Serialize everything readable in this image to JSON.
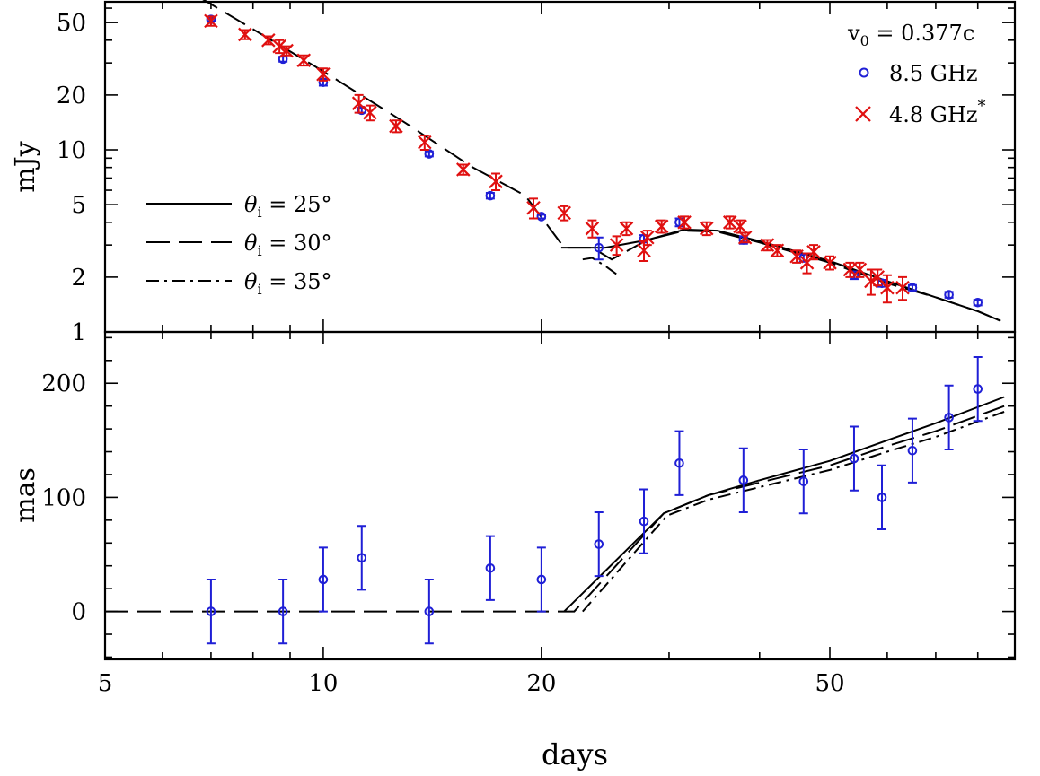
{
  "chart_data": [
    {
      "type": "scatter",
      "panel": "top",
      "ylabel": "mJy",
      "xlabel": "days",
      "xscale": "log",
      "yscale": "log",
      "xlim": [
        5,
        90
      ],
      "ylim": [
        1,
        65
      ],
      "x_ticks": [
        "5",
        "10",
        "20",
        "50"
      ],
      "y_ticks": [
        "1",
        "2",
        "5",
        "10",
        "20",
        "50"
      ],
      "annotation": {
        "v": "v",
        "sub": "0",
        "rest": " = 0.377c"
      },
      "legend_position": "top-right",
      "series": [
        {
          "name": "8.5 GHz",
          "color": "#1f1fd6",
          "marker": "open-circle",
          "points": [
            {
              "x": 7.0,
              "y": 52,
              "err": 1
            },
            {
              "x": 8.8,
              "y": 31.5,
              "err": 1
            },
            {
              "x": 10.0,
              "y": 23.5,
              "err": 1
            },
            {
              "x": 11.3,
              "y": 16.5,
              "err": 0.5
            },
            {
              "x": 14.0,
              "y": 9.5,
              "err": 0.3
            },
            {
              "x": 17.0,
              "y": 5.6,
              "err": 0.2
            },
            {
              "x": 20.0,
              "y": 4.3,
              "err": 0.1
            },
            {
              "x": 24.0,
              "y": 2.9,
              "err": 0.4
            },
            {
              "x": 27.7,
              "y": 3.25,
              "err": 0.15
            },
            {
              "x": 31.0,
              "y": 4.0,
              "err": 0.2
            },
            {
              "x": 38.0,
              "y": 3.2,
              "err": 0.15
            },
            {
              "x": 46.0,
              "y": 2.55,
              "err": 0.12
            },
            {
              "x": 54.0,
              "y": 2.05,
              "err": 0.1
            },
            {
              "x": 59.0,
              "y": 1.85,
              "err": 0.08
            },
            {
              "x": 65.0,
              "y": 1.75,
              "err": 0.06
            },
            {
              "x": 73.0,
              "y": 1.6,
              "err": 0.06
            },
            {
              "x": 80.0,
              "y": 1.45,
              "err": 0.05
            }
          ]
        },
        {
          "name": "4.8 GHz",
          "name_sup": "*",
          "color": "#e01010",
          "marker": "x",
          "points": [
            {
              "x": 7.0,
              "y": 51,
              "err": 3
            },
            {
              "x": 7.8,
              "y": 43,
              "err": 2.5
            },
            {
              "x": 8.4,
              "y": 40,
              "err": 2
            },
            {
              "x": 8.7,
              "y": 37,
              "err": 3
            },
            {
              "x": 8.9,
              "y": 35,
              "err": 2
            },
            {
              "x": 9.4,
              "y": 31,
              "err": 2
            },
            {
              "x": 10.0,
              "y": 26,
              "err": 2
            },
            {
              "x": 11.2,
              "y": 18,
              "err": 2
            },
            {
              "x": 11.6,
              "y": 16,
              "err": 1.5
            },
            {
              "x": 12.6,
              "y": 13.5,
              "err": 1
            },
            {
              "x": 13.8,
              "y": 11,
              "err": 1
            },
            {
              "x": 15.6,
              "y": 7.8,
              "err": 0.5
            },
            {
              "x": 17.3,
              "y": 6.7,
              "err": 0.7
            },
            {
              "x": 19.5,
              "y": 4.8,
              "err": 0.6
            },
            {
              "x": 21.5,
              "y": 4.5,
              "err": 0.4
            },
            {
              "x": 23.5,
              "y": 3.7,
              "err": 0.4
            },
            {
              "x": 25.4,
              "y": 3.0,
              "err": 0.35
            },
            {
              "x": 26.2,
              "y": 3.7,
              "err": 0.3
            },
            {
              "x": 27.7,
              "y": 2.8,
              "err": 0.35
            },
            {
              "x": 28.0,
              "y": 3.3,
              "err": 0.3
            },
            {
              "x": 29.3,
              "y": 3.8,
              "err": 0.3
            },
            {
              "x": 31.5,
              "y": 4.0,
              "err": 0.3
            },
            {
              "x": 33.8,
              "y": 3.7,
              "err": 0.3
            },
            {
              "x": 36.4,
              "y": 4.0,
              "err": 0.3
            },
            {
              "x": 37.6,
              "y": 3.8,
              "err": 0.3
            },
            {
              "x": 38.2,
              "y": 3.3,
              "err": 0.2
            },
            {
              "x": 41.0,
              "y": 3.0,
              "err": 0.2
            },
            {
              "x": 42.3,
              "y": 2.8,
              "err": 0.2
            },
            {
              "x": 45.0,
              "y": 2.6,
              "err": 0.2
            },
            {
              "x": 46.5,
              "y": 2.4,
              "err": 0.3
            },
            {
              "x": 47.5,
              "y": 2.75,
              "err": 0.25
            },
            {
              "x": 50.0,
              "y": 2.4,
              "err": 0.2
            },
            {
              "x": 53.3,
              "y": 2.2,
              "err": 0.2
            },
            {
              "x": 55.0,
              "y": 2.2,
              "err": 0.2
            },
            {
              "x": 57.0,
              "y": 1.9,
              "err": 0.3
            },
            {
              "x": 58.2,
              "y": 2.0,
              "err": 0.2
            },
            {
              "x": 60.0,
              "y": 1.75,
              "err": 0.3
            },
            {
              "x": 63.0,
              "y": 1.75,
              "err": 0.25
            }
          ]
        }
      ],
      "models": [
        {
          "name": "θi = 25°",
          "legend": {
            "theta": "θ",
            "sub": "i",
            "rest": " = 25°"
          },
          "style": "solid",
          "points": [
            [
              21.3,
              2.9
            ],
            [
              24.5,
              2.9
            ],
            [
              28,
              3.2
            ],
            [
              31.5,
              3.65
            ],
            [
              35,
              3.6
            ],
            [
              40,
              3.15
            ],
            [
              50,
              2.45
            ],
            [
              60,
              1.9
            ],
            [
              70,
              1.55
            ],
            [
              80,
              1.3
            ],
            [
              86,
              1.15
            ]
          ]
        },
        {
          "name": "θi = 30°",
          "legend": {
            "theta": "θ",
            "sub": "i",
            "rest": " = 30°"
          },
          "style": "dashed",
          "points": [
            [
              6.7,
              70
            ],
            [
              8,
              46
            ],
            [
              10,
              27
            ],
            [
              13,
              14
            ],
            [
              16,
              8.1
            ],
            [
              19,
              5.6
            ],
            [
              21.5,
              2.9
            ],
            [
              23.5,
              2.9
            ],
            [
              25,
              2.5
            ],
            [
              28,
              3.2
            ],
            [
              31.5,
              3.6
            ],
            [
              35,
              3.55
            ],
            [
              40,
              3.1
            ],
            [
              50,
              2.4
            ],
            [
              60,
              1.85
            ],
            [
              70,
              1.55
            ],
            [
              80,
              1.3
            ],
            [
              86,
              1.15
            ]
          ]
        },
        {
          "name": "θi = 35°",
          "legend": {
            "theta": "θ",
            "sub": "i",
            "rest": " = 35°"
          },
          "style": "dashdot",
          "points": [
            [
              22.8,
              2.5
            ],
            [
              23.5,
              2.55
            ],
            [
              24.5,
              2.3
            ],
            [
              25.5,
              2.05
            ]
          ]
        }
      ]
    },
    {
      "type": "scatter",
      "panel": "bottom",
      "ylabel": "mas",
      "xlabel": "days",
      "xscale": "log",
      "xlim": [
        5,
        90
      ],
      "ylim": [
        -42,
        245
      ],
      "x_ticks": [
        "5",
        "10",
        "20",
        "50"
      ],
      "y_ticks": [
        "0",
        "100",
        "200"
      ],
      "series": [
        {
          "name": "",
          "color": "#1f1fd6",
          "marker": "open-circle",
          "points": [
            {
              "x": 7.0,
              "y": 0,
              "err": 28
            },
            {
              "x": 8.8,
              "y": 0,
              "err": 28
            },
            {
              "x": 10.0,
              "y": 28,
              "err": 28
            },
            {
              "x": 11.3,
              "y": 47,
              "err": 28
            },
            {
              "x": 14.0,
              "y": 0,
              "err": 28
            },
            {
              "x": 17.0,
              "y": 38,
              "err": 28
            },
            {
              "x": 20.0,
              "y": 28,
              "err": 28
            },
            {
              "x": 24.0,
              "y": 59,
              "err": 28
            },
            {
              "x": 27.7,
              "y": 79,
              "err": 28
            },
            {
              "x": 31.0,
              "y": 130,
              "err": 28
            },
            {
              "x": 38.0,
              "y": 115,
              "err": 28
            },
            {
              "x": 46.0,
              "y": 114,
              "err": 28
            },
            {
              "x": 54.0,
              "y": 134,
              "err": 28
            },
            {
              "x": 59.0,
              "y": 100,
              "err": 28
            },
            {
              "x": 65.0,
              "y": 141,
              "err": 28
            },
            {
              "x": 73.0,
              "y": 170,
              "err": 28
            },
            {
              "x": 80.0,
              "y": 195,
              "err": 28
            }
          ]
        }
      ],
      "models": [
        {
          "name": "θi = 25°",
          "style": "solid",
          "points": [
            [
              21.5,
              0
            ],
            [
              29.5,
              86
            ],
            [
              34,
              102
            ],
            [
              40,
              115
            ],
            [
              50,
              132
            ],
            [
              60,
              150
            ],
            [
              70,
              165
            ],
            [
              87,
              188
            ]
          ]
        },
        {
          "name": "θi = 30°",
          "style": "dashed",
          "points": [
            [
              5,
              0
            ],
            [
              22.2,
              0
            ],
            [
              29.5,
              86
            ],
            [
              34,
              102
            ],
            [
              40,
              113
            ],
            [
              50,
              128
            ],
            [
              60,
              145
            ],
            [
              70,
              158
            ],
            [
              87,
              180
            ]
          ]
        },
        {
          "name": "θi = 35°",
          "style": "dashdot",
          "points": [
            [
              22.8,
              0
            ],
            [
              29.8,
              84
            ],
            [
              34,
              98
            ],
            [
              40,
              109
            ],
            [
              50,
              124
            ],
            [
              60,
              140
            ],
            [
              70,
              153
            ],
            [
              87,
              175
            ]
          ]
        }
      ]
    }
  ]
}
